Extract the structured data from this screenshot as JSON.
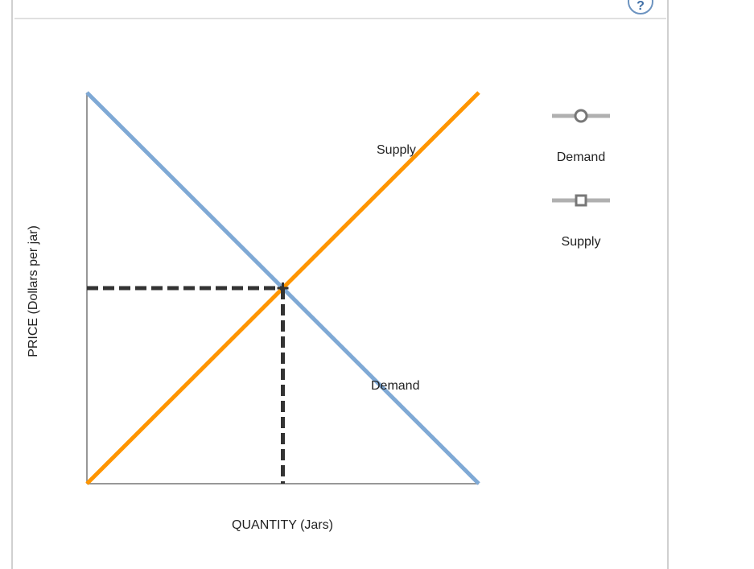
{
  "help_icon": "question-mark-icon",
  "help_text": "?",
  "chart_data": {
    "type": "line",
    "xlabel": "QUANTITY (Jars)",
    "ylabel": "PRICE (Dollars per jar)",
    "xlim": [
      0,
      100
    ],
    "ylim": [
      0,
      100
    ],
    "grid": false,
    "series": [
      {
        "name": "Demand",
        "color": "#7fa9d5",
        "points": [
          [
            0,
            100
          ],
          [
            100,
            0
          ]
        ]
      },
      {
        "name": "Supply",
        "color": "#ff9500",
        "points": [
          [
            0,
            0
          ],
          [
            100,
            100
          ]
        ]
      }
    ],
    "equilibrium": {
      "x": 50,
      "y": 50,
      "color": "#333333"
    },
    "annotations": {
      "supply": "Supply",
      "demand": "Demand"
    }
  },
  "legend": [
    {
      "label": "Demand",
      "marker": "circle"
    },
    {
      "label": "Supply",
      "marker": "square"
    }
  ]
}
